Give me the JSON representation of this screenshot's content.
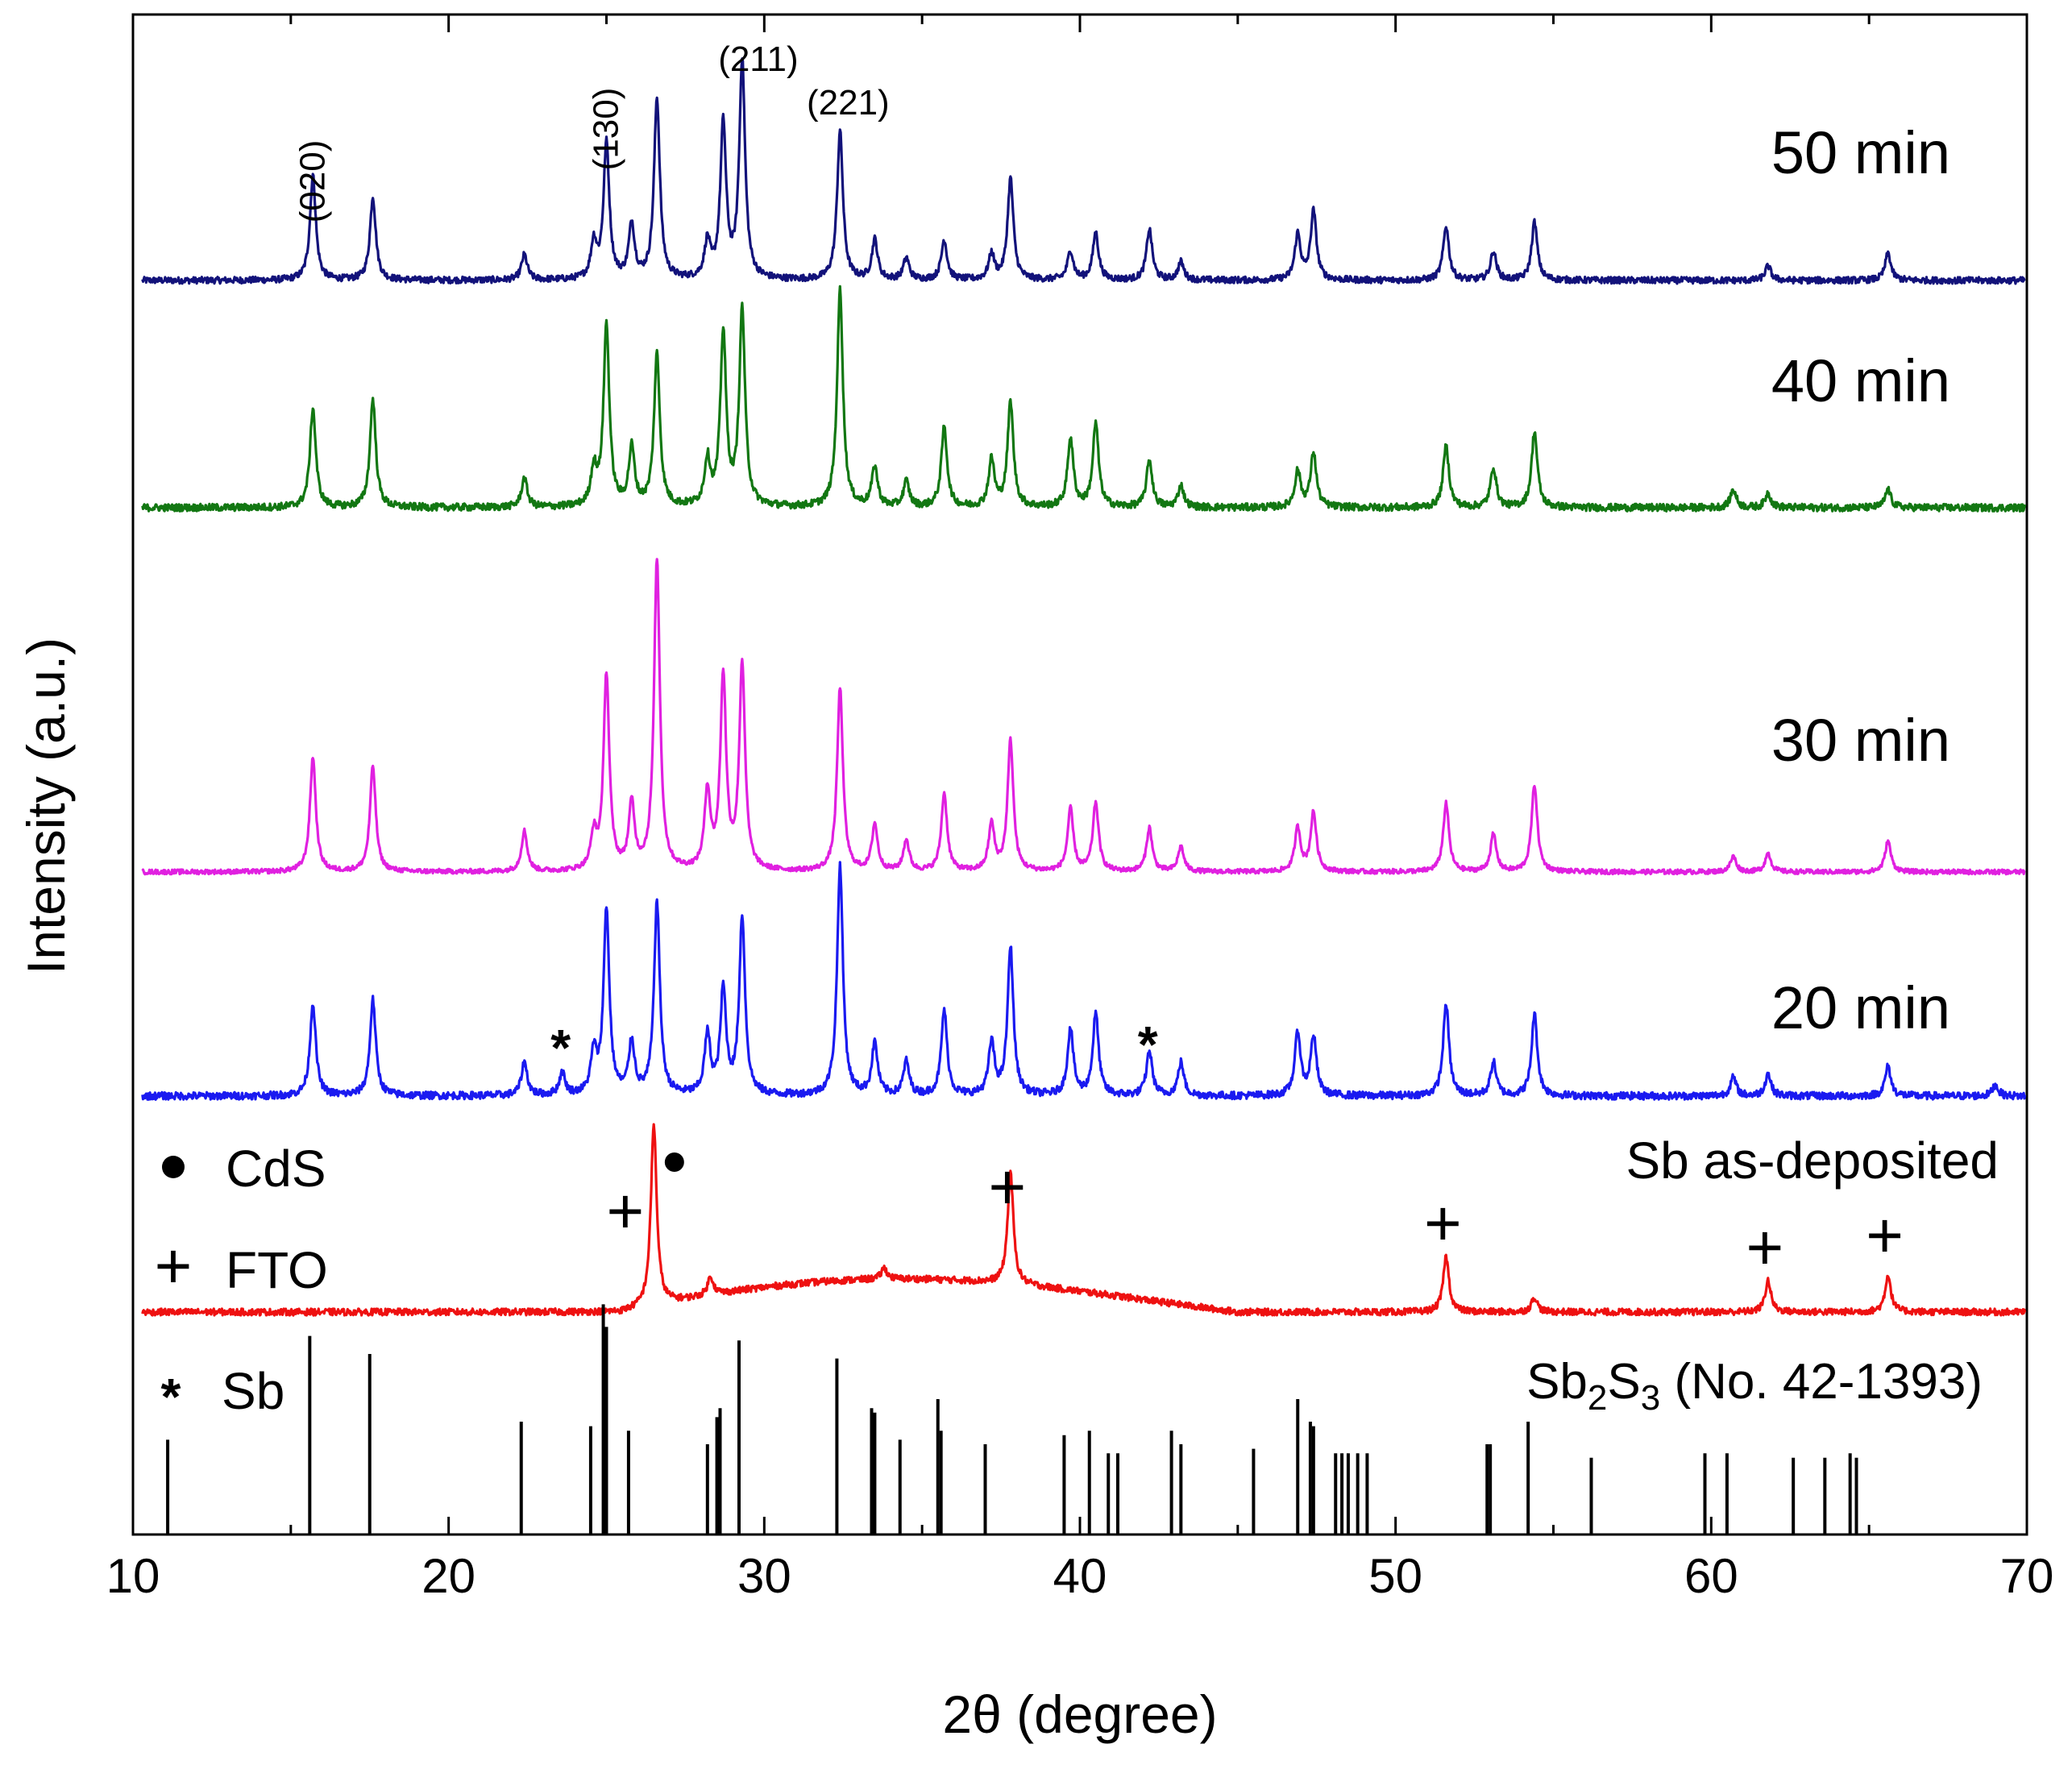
{
  "chart_data": {
    "type": "line",
    "title": "",
    "xlabel": "2θ (degree)",
    "ylabel": "Intensity (a.u.)",
    "xlim": [
      10,
      70
    ],
    "xticks": [
      10,
      20,
      30,
      40,
      50,
      60,
      70
    ],
    "grid": false,
    "legend": [
      {
        "marker": "●",
        "label": "CdS"
      },
      {
        "marker": "+",
        "label": "FTO"
      },
      {
        "marker": "*",
        "label": "Sb"
      }
    ],
    "series": [
      {
        "name": "50 min",
        "label": "50 min",
        "color": "#12127a",
        "baseline": 0.0,
        "noise": 0.018,
        "peaks": [
          [
            15.7,
            0.58
          ],
          [
            17.6,
            0.46
          ],
          [
            22.4,
            0.14
          ],
          [
            24.6,
            0.2
          ],
          [
            25.0,
            0.75
          ],
          [
            25.8,
            0.3
          ],
          [
            26.6,
            1.0
          ],
          [
            28.2,
            0.2
          ],
          [
            28.7,
            0.85
          ],
          [
            29.3,
            1.2
          ],
          [
            32.4,
            0.82
          ],
          [
            33.5,
            0.22
          ],
          [
            34.5,
            0.12
          ],
          [
            35.7,
            0.22
          ],
          [
            37.2,
            0.14
          ],
          [
            37.8,
            0.56
          ],
          [
            39.7,
            0.16
          ],
          [
            40.5,
            0.26
          ],
          [
            42.2,
            0.28
          ],
          [
            43.2,
            0.1
          ],
          [
            46.9,
            0.25
          ],
          [
            47.4,
            0.38
          ],
          [
            51.6,
            0.3
          ],
          [
            53.1,
            0.16
          ],
          [
            54.4,
            0.32
          ],
          [
            61.8,
            0.08
          ],
          [
            65.6,
            0.15
          ]
        ]
      },
      {
        "name": "40 min",
        "label": "40 min",
        "color": "#127712",
        "baseline": 0.0,
        "noise": 0.02,
        "peaks": [
          [
            15.7,
            0.55
          ],
          [
            17.6,
            0.6
          ],
          [
            22.4,
            0.16
          ],
          [
            24.6,
            0.2
          ],
          [
            25.0,
            1.0
          ],
          [
            25.8,
            0.32
          ],
          [
            26.6,
            0.84
          ],
          [
            28.2,
            0.25
          ],
          [
            28.7,
            0.95
          ],
          [
            29.3,
            1.08
          ],
          [
            32.4,
            1.2
          ],
          [
            33.5,
            0.22
          ],
          [
            34.5,
            0.14
          ],
          [
            35.7,
            0.44
          ],
          [
            37.2,
            0.26
          ],
          [
            37.8,
            0.58
          ],
          [
            39.7,
            0.38
          ],
          [
            40.5,
            0.46
          ],
          [
            42.2,
            0.26
          ],
          [
            43.2,
            0.12
          ],
          [
            46.9,
            0.2
          ],
          [
            47.4,
            0.3
          ],
          [
            51.6,
            0.34
          ],
          [
            53.1,
            0.22
          ],
          [
            54.4,
            0.42
          ],
          [
            60.7,
            0.1
          ],
          [
            61.8,
            0.08
          ],
          [
            65.6,
            0.1
          ]
        ]
      },
      {
        "name": "30 min",
        "label": "30 min",
        "color": "#e020e0",
        "baseline": 0.0,
        "noise": 0.015,
        "peaks": [
          [
            15.7,
            0.74
          ],
          [
            17.6,
            0.68
          ],
          [
            22.4,
            0.26
          ],
          [
            24.6,
            0.22
          ],
          [
            25.0,
            1.26
          ],
          [
            25.8,
            0.42
          ],
          [
            26.6,
            2.0
          ],
          [
            28.2,
            0.5
          ],
          [
            28.7,
            1.24
          ],
          [
            29.3,
            1.32
          ],
          [
            32.4,
            1.18
          ],
          [
            33.5,
            0.3
          ],
          [
            34.5,
            0.2
          ],
          [
            35.7,
            0.5
          ],
          [
            37.2,
            0.3
          ],
          [
            37.8,
            0.84
          ],
          [
            39.7,
            0.4
          ],
          [
            40.5,
            0.44
          ],
          [
            42.2,
            0.28
          ],
          [
            43.2,
            0.16
          ],
          [
            46.9,
            0.28
          ],
          [
            47.4,
            0.38
          ],
          [
            51.6,
            0.44
          ],
          [
            53.1,
            0.24
          ],
          [
            54.4,
            0.56
          ],
          [
            60.7,
            0.1
          ],
          [
            61.8,
            0.12
          ],
          [
            65.6,
            0.2
          ]
        ]
      },
      {
        "name": "20 min",
        "label": "20 min",
        "color": "#1a1af0",
        "baseline": 0.0,
        "noise": 0.02,
        "peaks": [
          [
            15.7,
            0.5
          ],
          [
            17.6,
            0.52
          ],
          [
            22.4,
            0.18
          ],
          [
            23.6,
            0.12
          ],
          [
            24.6,
            0.22
          ],
          [
            25.0,
            1.0
          ],
          [
            25.8,
            0.28
          ],
          [
            26.6,
            1.04
          ],
          [
            28.2,
            0.32
          ],
          [
            28.7,
            0.56
          ],
          [
            29.3,
            0.96
          ],
          [
            32.4,
            1.24
          ],
          [
            33.5,
            0.28
          ],
          [
            34.5,
            0.18
          ],
          [
            35.7,
            0.46
          ],
          [
            37.2,
            0.28
          ],
          [
            37.8,
            0.8
          ],
          [
            39.7,
            0.36
          ],
          [
            40.5,
            0.44
          ],
          [
            42.2,
            0.24
          ],
          [
            43.2,
            0.18
          ],
          [
            46.9,
            0.34
          ],
          [
            47.4,
            0.32
          ],
          [
            51.6,
            0.5
          ],
          [
            53.1,
            0.18
          ],
          [
            54.4,
            0.44
          ],
          [
            60.7,
            0.1
          ],
          [
            61.8,
            0.12
          ],
          [
            65.6,
            0.16
          ],
          [
            69.0,
            0.06
          ]
        ]
      },
      {
        "name": "Sb as-deposited",
        "label": "Sb as-deposited",
        "color": "#ee1111",
        "baseline": 0.0,
        "noise": 0.018,
        "peaks": [
          [
            26.5,
            0.98
          ],
          [
            28.3,
            0.1
          ],
          [
            33.8,
            0.06
          ],
          [
            37.8,
            0.6
          ],
          [
            51.6,
            0.3
          ],
          [
            54.4,
            0.08
          ],
          [
            61.8,
            0.17
          ],
          [
            65.6,
            0.2
          ]
        ],
        "hump": {
          "from": 26.5,
          "to": 45,
          "height": 0.22
        }
      }
    ],
    "hkl_labels": [
      {
        "label": "(020)",
        "x": 15.7
      },
      {
        "label": "(130)",
        "x": 25.0
      },
      {
        "label": "(211)",
        "x": 29.3
      },
      {
        "label": "(221)",
        "x": 32.4
      }
    ],
    "fto_markers": [
      25.8,
      37.8,
      51.6,
      61.8,
      65.6
    ],
    "cds_marker": 27.0,
    "sb_markers": [
      23.6,
      42.2
    ],
    "reference": {
      "label_prefix": "Sb",
      "label_sub1": "2",
      "label_mid": "S",
      "label_sub2": "3",
      "label_suffix": " (No. 42-1393)",
      "positions": [
        11.1,
        15.6,
        17.5,
        22.3,
        24.5,
        24.9,
        25.0,
        25.7,
        28.2,
        28.5,
        28.6,
        29.2,
        32.3,
        33.4,
        33.5,
        34.3,
        35.5,
        35.6,
        37.0,
        39.5,
        40.3,
        40.9,
        41.2,
        42.9,
        43.2,
        45.5,
        46.9,
        47.3,
        47.4,
        48.1,
        48.3,
        48.5,
        48.8,
        49.1,
        52.9,
        53.0,
        54.2,
        56.2,
        59.8,
        60.5,
        62.6,
        63.6,
        64.4,
        64.6
      ],
      "heights": [
        0.42,
        0.88,
        0.8,
        0.5,
        0.48,
        1.02,
        0.92,
        0.46,
        0.4,
        0.52,
        0.56,
        0.86,
        0.78,
        0.56,
        0.54,
        0.42,
        0.6,
        0.46,
        0.4,
        0.44,
        0.46,
        0.36,
        0.36,
        0.46,
        0.4,
        0.38,
        0.6,
        0.5,
        0.48,
        0.36,
        0.36,
        0.36,
        0.36,
        0.36,
        0.4,
        0.4,
        0.5,
        0.34,
        0.36,
        0.36,
        0.34,
        0.34,
        0.36,
        0.34
      ]
    }
  }
}
